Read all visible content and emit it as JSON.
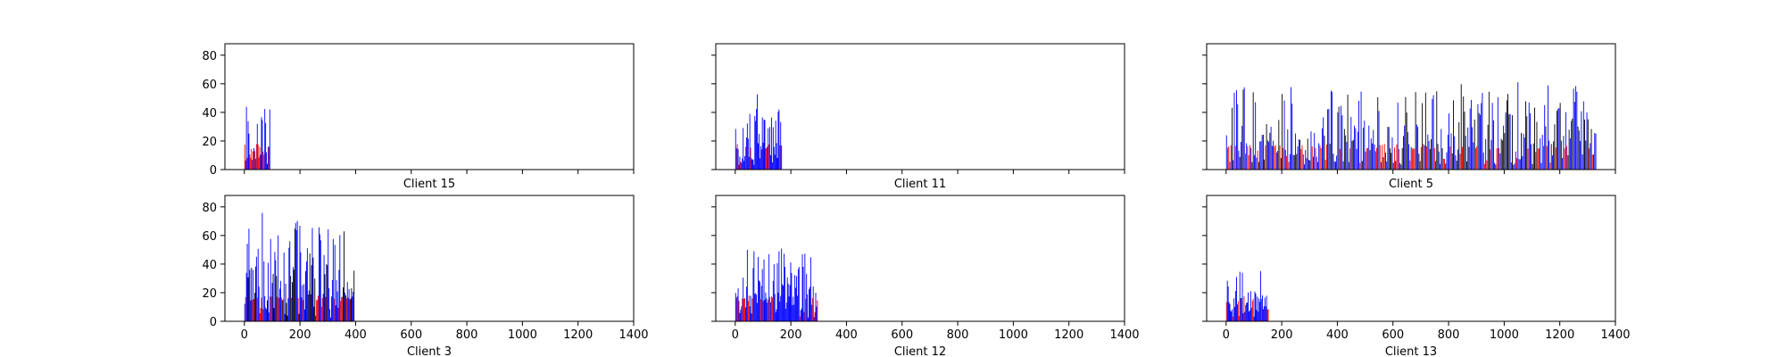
{
  "colors": {
    "bar_blue": "#0000ff",
    "bar_black": "#000000",
    "bar_red": "#ff0000",
    "axes": "#000000",
    "background": "#ffffff"
  },
  "chart_data": [
    {
      "type": "bar",
      "title": "Client 15",
      "xlim": [
        -70,
        1400
      ],
      "ylim": [
        0,
        88
      ],
      "xticks": [
        0,
        200,
        400,
        600,
        800,
        1000,
        1200,
        1400
      ],
      "xtick_labels": [
        "",
        "",
        "",
        "",
        "",
        "",
        "",
        ""
      ],
      "yticks": [
        0,
        20,
        40,
        60,
        80
      ],
      "ytick_labels": [
        "0",
        "20",
        "40",
        "60",
        "80"
      ],
      "shared_x_with_row_below": true,
      "extent": 92,
      "max_value": 44,
      "color_mix": "mostly blue and red",
      "seed": 15
    },
    {
      "type": "bar",
      "title": "Client 11",
      "xlim": [
        -70,
        1400
      ],
      "ylim": [
        0,
        88
      ],
      "xticks": [
        0,
        200,
        400,
        600,
        800,
        1000,
        1200,
        1400
      ],
      "xtick_labels": [
        "",
        "",
        "",
        "",
        "",
        "",
        "",
        ""
      ],
      "yticks": [
        0,
        20,
        40,
        60,
        80
      ],
      "ytick_labels": [
        "",
        "",
        "",
        "",
        ""
      ],
      "shared_x_with_row_below": true,
      "extent": 165,
      "max_value": 54,
      "color_mix": "mostly blue with red",
      "seed": 11
    },
    {
      "type": "bar",
      "title": "Client 5",
      "xlim": [
        -70,
        1400
      ],
      "ylim": [
        0,
        88
      ],
      "xticks": [
        0,
        200,
        400,
        600,
        800,
        1000,
        1200,
        1400
      ],
      "xtick_labels": [
        "",
        "",
        "",
        "",
        "",
        "",
        "",
        ""
      ],
      "yticks": [
        0,
        20,
        40,
        60,
        80
      ],
      "ytick_labels": [
        "",
        "",
        "",
        "",
        ""
      ],
      "shared_x_with_row_below": true,
      "extent": 1330,
      "max_value": 62,
      "color_mix": "blue, black and red",
      "seed": 5
    },
    {
      "type": "bar",
      "title": "Client 3",
      "xlim": [
        -70,
        1400
      ],
      "ylim": [
        0,
        88
      ],
      "xticks": [
        0,
        200,
        400,
        600,
        800,
        1000,
        1200,
        1400
      ],
      "xtick_labels": [
        "0",
        "200",
        "400",
        "600",
        "800",
        "1000",
        "1200",
        "1400"
      ],
      "yticks": [
        0,
        20,
        40,
        60,
        80
      ],
      "ytick_labels": [
        "0",
        "20",
        "40",
        "60",
        "80"
      ],
      "extent": 395,
      "max_value": 80,
      "color_mix": "blue, black and red",
      "seed": 3
    },
    {
      "type": "bar",
      "title": "Client 12",
      "xlim": [
        -70,
        1400
      ],
      "ylim": [
        0,
        88
      ],
      "xticks": [
        0,
        200,
        400,
        600,
        800,
        1000,
        1200,
        1400
      ],
      "xtick_labels": [
        "0",
        "200",
        "400",
        "600",
        "800",
        "1000",
        "1200",
        "1400"
      ],
      "yticks": [
        0,
        20,
        40,
        60,
        80
      ],
      "ytick_labels": [
        "",
        "",
        "",
        "",
        ""
      ],
      "extent": 295,
      "max_value": 52,
      "color_mix": "blue with red",
      "seed": 12
    },
    {
      "type": "bar",
      "title": "Client 13",
      "xlim": [
        -70,
        1400
      ],
      "ylim": [
        0,
        88
      ],
      "xticks": [
        0,
        200,
        400,
        600,
        800,
        1000,
        1200,
        1400
      ],
      "xtick_labels": [
        "0",
        "200",
        "400",
        "600",
        "800",
        "1000",
        "1200",
        "1400"
      ],
      "yticks": [
        0,
        20,
        40,
        60,
        80
      ],
      "ytick_labels": [
        "",
        "",
        "",
        "",
        ""
      ],
      "extent": 150,
      "max_value": 37,
      "color_mix": "blue with red",
      "seed": 13
    }
  ]
}
